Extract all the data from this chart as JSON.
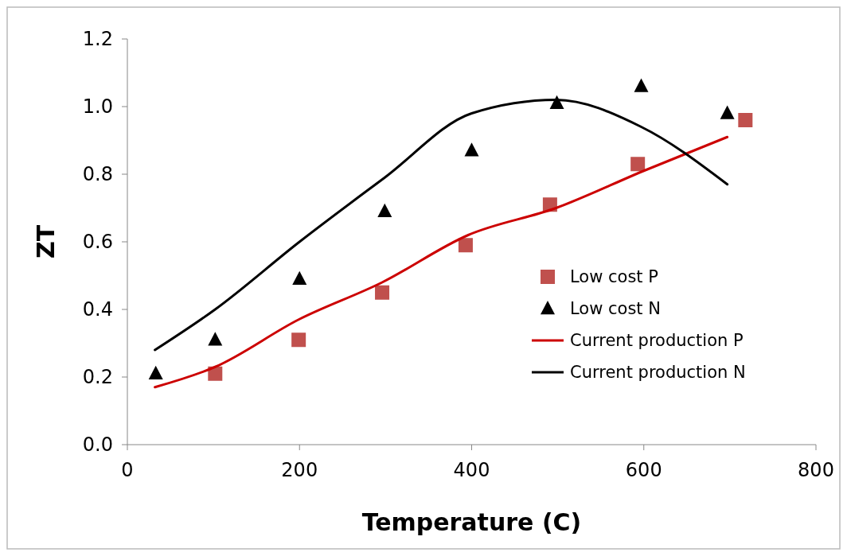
{
  "chart_data": {
    "type": "line",
    "xlabel": "Temperature (C)",
    "ylabel": "ZT",
    "xlim": [
      0,
      800
    ],
    "xticks": [
      0,
      200,
      400,
      600,
      800
    ],
    "ylim": [
      0,
      1.2
    ],
    "yticks": [
      {
        "value": 0,
        "label": "0.0"
      },
      {
        "value": 0.2,
        "label": "0.2"
      },
      {
        "value": 0.4,
        "label": "0.4"
      },
      {
        "value": 0.6,
        "label": "0.6"
      },
      {
        "value": 0.8,
        "label": "0.8"
      },
      {
        "value": 1.0,
        "label": "1.0"
      },
      {
        "value": 1.2,
        "label": "1.2"
      }
    ],
    "grid": false,
    "legend": "right",
    "series": [
      {
        "name": "Low cost P",
        "type": "scatter",
        "marker": "square",
        "color": "#c0504d",
        "x": [
          102,
          199,
          296,
          393,
          491,
          593,
          718
        ],
        "values": [
          0.21,
          0.31,
          0.45,
          0.59,
          0.71,
          0.83,
          0.96
        ]
      },
      {
        "name": "Low cost N",
        "type": "scatter",
        "marker": "triangle",
        "color": "#000000",
        "x": [
          33,
          102,
          200,
          299,
          400,
          499,
          597,
          697
        ],
        "values": [
          0.21,
          0.31,
          0.49,
          0.69,
          0.87,
          1.01,
          1.06,
          0.98
        ]
      },
      {
        "name": "Current production P",
        "color": "#cc0000",
        "x": [
          32,
          102,
          199,
          296,
          396,
          498,
          600,
          697
        ],
        "values": [
          0.17,
          0.23,
          0.37,
          0.48,
          0.62,
          0.7,
          0.81,
          0.91
        ]
      },
      {
        "name": "Current production N",
        "color": "#000000",
        "x": [
          32,
          102,
          200,
          299,
          400,
          498,
          597,
          697
        ],
        "values": [
          0.28,
          0.4,
          0.6,
          0.79,
          0.98,
          1.02,
          0.94,
          0.77
        ]
      }
    ]
  }
}
